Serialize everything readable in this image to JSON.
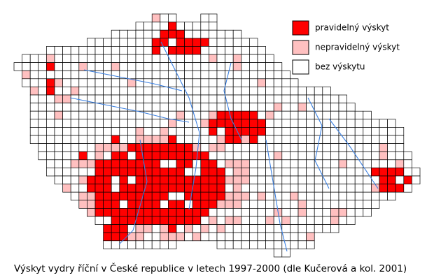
{
  "legend": {
    "items": [
      {
        "label": "pravidelný výskyt",
        "color": "#ff0000"
      },
      {
        "label": "nepravidelný výskyt",
        "color": "#ffc0c0"
      },
      {
        "label": "bez výskytu",
        "color": "#ffffff"
      }
    ]
  },
  "caption": "Výskyt vydry říční v České republice v letech 1997-2000 (dle Kučerová a kol. 2001)"
}
